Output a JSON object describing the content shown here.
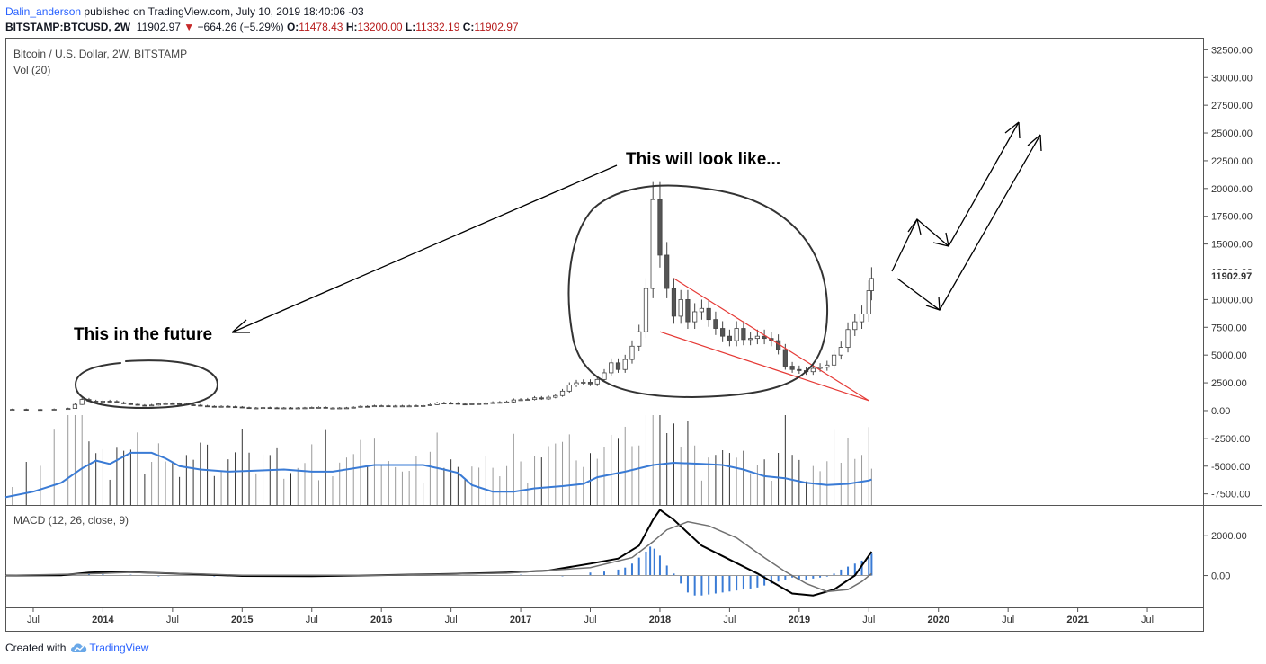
{
  "header": {
    "user": "Dalin_anderson",
    "published": " published on TradingView.com, July 10, 2019 18:40:06 -03"
  },
  "ticker": {
    "symbol": "BITSTAMP:BTCUSD, 2W",
    "last": "11902.97",
    "change": "−664.26 (−5.29%)",
    "o_label": "O:",
    "o": "11478.43",
    "h_label": "H:",
    "h": "13200.00",
    "l_label": "L:",
    "l": "11332.19",
    "c_label": "C:",
    "c": "11902.97"
  },
  "legend": {
    "main": "Bitcoin / U.S. Dollar, 2W, BITSTAMP",
    "vol": "Vol (20)",
    "macd": "MACD (12, 26, close, 9)"
  },
  "annotations": {
    "future": "This in the future",
    "lookslike": "This will look like..."
  },
  "footer": {
    "created": "Created with",
    "brand": "TradingView"
  },
  "colors": {
    "up": "#ffffff",
    "down": "#555555",
    "vol_ma": "#3a7bd5",
    "macd": "#000000",
    "signal": "#707070",
    "hist": "#3a7bd5",
    "wedge": "#e53935"
  },
  "chart_data": [
    {
      "type": "candlestick",
      "title": "Bitcoin / U.S. Dollar, 2W, BITSTAMP",
      "y_ticks": [
        32500,
        30000,
        27500,
        25000,
        22500,
        20000,
        17500,
        15000,
        12500,
        10000,
        7500,
        5000,
        2500,
        0,
        -2500,
        -5000,
        -7500
      ],
      "y_tick_labels": [
        "32500.00",
        "30000.00",
        "27500.00",
        "25000.00",
        "22500.00",
        "20000.00",
        "17500.00",
        "15000.00",
        "12500.00",
        "10000.00",
        "7500.00",
        "5000.00",
        "2500.00",
        "0.00",
        "-2500.00",
        "-5000.00",
        "-7500.00"
      ],
      "ylim": [
        -8500,
        33500
      ],
      "last_price_label": "11902.97",
      "x_range": [
        2013.3,
        2021.9
      ],
      "x_ticks": [
        {
          "label": "Jul",
          "t": 2013.5,
          "major": false
        },
        {
          "label": "2014",
          "t": 2014.0,
          "major": true
        },
        {
          "label": "Jul",
          "t": 2014.5,
          "major": false
        },
        {
          "label": "2015",
          "t": 2015.0,
          "major": true
        },
        {
          "label": "Jul",
          "t": 2015.5,
          "major": false
        },
        {
          "label": "2016",
          "t": 2016.0,
          "major": true
        },
        {
          "label": "Jul",
          "t": 2016.5,
          "major": false
        },
        {
          "label": "2017",
          "t": 2017.0,
          "major": true
        },
        {
          "label": "Jul",
          "t": 2017.5,
          "major": false
        },
        {
          "label": "2018",
          "t": 2018.0,
          "major": true
        },
        {
          "label": "Jul",
          "t": 2018.5,
          "major": false
        },
        {
          "label": "2019",
          "t": 2019.0,
          "major": true
        },
        {
          "label": "Jul",
          "t": 2019.5,
          "major": false
        },
        {
          "label": "2020",
          "t": 2020.0,
          "major": true
        },
        {
          "label": "Jul",
          "t": 2020.5,
          "major": false
        },
        {
          "label": "2021",
          "t": 2021.0,
          "major": true
        },
        {
          "label": "Jul",
          "t": 2021.5,
          "major": false
        }
      ],
      "closes": [
        [
          2013.35,
          110
        ],
        [
          2013.45,
          100
        ],
        [
          2013.55,
          95
        ],
        [
          2013.65,
          120
        ],
        [
          2013.75,
          190
        ],
        [
          2013.8,
          550
        ],
        [
          2013.85,
          1000
        ],
        [
          2013.9,
          850
        ],
        [
          2013.95,
          780
        ],
        [
          2014.0,
          850
        ],
        [
          2014.05,
          820
        ],
        [
          2014.1,
          700
        ],
        [
          2014.15,
          620
        ],
        [
          2014.2,
          560
        ],
        [
          2014.25,
          480
        ],
        [
          2014.3,
          450
        ],
        [
          2014.35,
          500
        ],
        [
          2014.4,
          600
        ],
        [
          2014.45,
          630
        ],
        [
          2014.5,
          620
        ],
        [
          2014.55,
          590
        ],
        [
          2014.6,
          520
        ],
        [
          2014.65,
          480
        ],
        [
          2014.7,
          420
        ],
        [
          2014.75,
          380
        ],
        [
          2014.8,
          360
        ],
        [
          2014.85,
          380
        ],
        [
          2014.9,
          350
        ],
        [
          2014.95,
          320
        ],
        [
          2015.0,
          270
        ],
        [
          2015.05,
          230
        ],
        [
          2015.1,
          240
        ],
        [
          2015.15,
          270
        ],
        [
          2015.2,
          250
        ],
        [
          2015.25,
          230
        ],
        [
          2015.3,
          240
        ],
        [
          2015.35,
          230
        ],
        [
          2015.4,
          240
        ],
        [
          2015.45,
          250
        ],
        [
          2015.5,
          280
        ],
        [
          2015.55,
          290
        ],
        [
          2015.6,
          230
        ],
        [
          2015.65,
          230
        ],
        [
          2015.7,
          240
        ],
        [
          2015.75,
          250
        ],
        [
          2015.8,
          300
        ],
        [
          2015.85,
          380
        ],
        [
          2015.9,
          360
        ],
        [
          2015.95,
          430
        ],
        [
          2016.0,
          430
        ],
        [
          2016.05,
          380
        ],
        [
          2016.1,
          410
        ],
        [
          2016.15,
          420
        ],
        [
          2016.2,
          420
        ],
        [
          2016.25,
          440
        ],
        [
          2016.3,
          450
        ],
        [
          2016.35,
          530
        ],
        [
          2016.4,
          680
        ],
        [
          2016.45,
          670
        ],
        [
          2016.5,
          650
        ],
        [
          2016.55,
          590
        ],
        [
          2016.6,
          580
        ],
        [
          2016.65,
          610
        ],
        [
          2016.7,
          620
        ],
        [
          2016.75,
          650
        ],
        [
          2016.8,
          720
        ],
        [
          2016.85,
          740
        ],
        [
          2016.9,
          780
        ],
        [
          2016.95,
          960
        ],
        [
          2017.0,
          980
        ],
        [
          2017.05,
          1000
        ],
        [
          2017.1,
          1150
        ],
        [
          2017.15,
          1050
        ],
        [
          2017.2,
          1200
        ],
        [
          2017.25,
          1350
        ],
        [
          2017.3,
          1750
        ],
        [
          2017.35,
          2300
        ],
        [
          2017.4,
          2500
        ],
        [
          2017.45,
          2550
        ],
        [
          2017.5,
          2400
        ],
        [
          2017.55,
          2800
        ],
        [
          2017.6,
          3400
        ],
        [
          2017.65,
          4300
        ],
        [
          2017.7,
          3700
        ],
        [
          2017.75,
          4600
        ],
        [
          2017.8,
          5800
        ],
        [
          2017.85,
          7100
        ],
        [
          2017.9,
          11000
        ],
        [
          2017.95,
          19000
        ],
        [
          2018.0,
          14000
        ],
        [
          2018.05,
          11000
        ],
        [
          2018.1,
          8500
        ],
        [
          2018.15,
          10000
        ],
        [
          2018.2,
          8000
        ],
        [
          2018.25,
          8900
        ],
        [
          2018.3,
          9200
        ],
        [
          2018.35,
          8200
        ],
        [
          2018.4,
          7400
        ],
        [
          2018.45,
          6700
        ],
        [
          2018.5,
          6300
        ],
        [
          2018.55,
          7400
        ],
        [
          2018.6,
          6400
        ],
        [
          2018.65,
          6500
        ],
        [
          2018.7,
          6700
        ],
        [
          2018.75,
          6500
        ],
        [
          2018.8,
          6300
        ],
        [
          2018.85,
          5500
        ],
        [
          2018.9,
          4000
        ],
        [
          2018.95,
          3700
        ],
        [
          2019.0,
          3600
        ],
        [
          2019.05,
          3500
        ],
        [
          2019.1,
          3800
        ],
        [
          2019.15,
          3900
        ],
        [
          2019.2,
          4100
        ],
        [
          2019.25,
          5000
        ],
        [
          2019.3,
          5700
        ],
        [
          2019.35,
          7300
        ],
        [
          2019.4,
          8000
        ],
        [
          2019.45,
          8700
        ],
        [
          2019.5,
          10800
        ],
        [
          2019.52,
          11902.97
        ]
      ],
      "volume_ma": [
        [
          2013.3,
          -7800
        ],
        [
          2013.5,
          -7300
        ],
        [
          2013.7,
          -6500
        ],
        [
          2013.85,
          -5200
        ],
        [
          2013.95,
          -4500
        ],
        [
          2014.05,
          -4800
        ],
        [
          2014.2,
          -3800
        ],
        [
          2014.35,
          -3800
        ],
        [
          2014.45,
          -4300
        ],
        [
          2014.55,
          -5000
        ],
        [
          2014.7,
          -5300
        ],
        [
          2014.9,
          -5500
        ],
        [
          2015.1,
          -5400
        ],
        [
          2015.3,
          -5300
        ],
        [
          2015.5,
          -5500
        ],
        [
          2015.65,
          -5500
        ],
        [
          2015.8,
          -5200
        ],
        [
          2015.95,
          -4900
        ],
        [
          2016.1,
          -4900
        ],
        [
          2016.3,
          -4900
        ],
        [
          2016.45,
          -5300
        ],
        [
          2016.55,
          -5600
        ],
        [
          2016.65,
          -6700
        ],
        [
          2016.8,
          -7300
        ],
        [
          2016.95,
          -7300
        ],
        [
          2017.1,
          -7000
        ],
        [
          2017.3,
          -6800
        ],
        [
          2017.45,
          -6600
        ],
        [
          2017.55,
          -6000
        ],
        [
          2017.75,
          -5500
        ],
        [
          2017.95,
          -4900
        ],
        [
          2018.1,
          -4700
        ],
        [
          2018.3,
          -4800
        ],
        [
          2018.45,
          -4900
        ],
        [
          2018.6,
          -5300
        ],
        [
          2018.75,
          -5900
        ],
        [
          2018.9,
          -6100
        ],
        [
          2019.05,
          -6500
        ],
        [
          2019.2,
          -6700
        ],
        [
          2019.35,
          -6600
        ],
        [
          2019.5,
          -6300
        ],
        [
          2019.52,
          -6200
        ]
      ],
      "wedge": {
        "upper": [
          [
            2018.1,
            11900
          ],
          [
            2019.5,
            900
          ]
        ],
        "lower": [
          [
            2018.0,
            7100
          ],
          [
            2019.5,
            900
          ]
        ]
      }
    },
    {
      "type": "macd",
      "title": "MACD (12, 26, close, 9)",
      "y_ticks": [
        2000,
        0
      ],
      "y_tick_labels": [
        "2000.00",
        "0.00"
      ],
      "ylim": [
        -1600,
        3500
      ],
      "macd": [
        [
          2013.3,
          0
        ],
        [
          2013.7,
          10
        ],
        [
          2013.9,
          150
        ],
        [
          2014.1,
          200
        ],
        [
          2014.4,
          130
        ],
        [
          2014.7,
          60
        ],
        [
          2015.0,
          -20
        ],
        [
          2015.5,
          -30
        ],
        [
          2016.0,
          20
        ],
        [
          2016.5,
          80
        ],
        [
          2016.9,
          150
        ],
        [
          2017.2,
          250
        ],
        [
          2017.5,
          600
        ],
        [
          2017.7,
          850
        ],
        [
          2017.85,
          1500
        ],
        [
          2017.95,
          2800
        ],
        [
          2018.0,
          3300
        ],
        [
          2018.1,
          2800
        ],
        [
          2018.3,
          1500
        ],
        [
          2018.5,
          800
        ],
        [
          2018.7,
          100
        ],
        [
          2018.85,
          -500
        ],
        [
          2018.95,
          -900
        ],
        [
          2019.1,
          -1000
        ],
        [
          2019.25,
          -700
        ],
        [
          2019.4,
          0
        ],
        [
          2019.52,
          1200
        ]
      ],
      "signal": [
        [
          2013.3,
          0
        ],
        [
          2013.9,
          90
        ],
        [
          2014.2,
          160
        ],
        [
          2014.7,
          80
        ],
        [
          2015.0,
          10
        ],
        [
          2016.0,
          10
        ],
        [
          2016.9,
          120
        ],
        [
          2017.5,
          400
        ],
        [
          2017.8,
          900
        ],
        [
          2017.95,
          1700
        ],
        [
          2018.05,
          2300
        ],
        [
          2018.2,
          2700
        ],
        [
          2018.35,
          2500
        ],
        [
          2018.55,
          1900
        ],
        [
          2018.75,
          900
        ],
        [
          2018.9,
          200
        ],
        [
          2019.05,
          -400
        ],
        [
          2019.2,
          -800
        ],
        [
          2019.35,
          -700
        ],
        [
          2019.45,
          -300
        ],
        [
          2019.52,
          100
        ]
      ],
      "histogram": [
        [
          2013.9,
          60
        ],
        [
          2014.0,
          60
        ],
        [
          2014.2,
          40
        ],
        [
          2014.4,
          -40
        ],
        [
          2014.6,
          -20
        ],
        [
          2014.8,
          -40
        ],
        [
          2015.2,
          -20
        ],
        [
          2016.4,
          20
        ],
        [
          2017.0,
          40
        ],
        [
          2017.3,
          -40
        ],
        [
          2017.5,
          150
        ],
        [
          2017.6,
          200
        ],
        [
          2017.7,
          300
        ],
        [
          2017.75,
          400
        ],
        [
          2017.8,
          600
        ],
        [
          2017.85,
          900
        ],
        [
          2017.9,
          1200
        ],
        [
          2017.93,
          1450
        ],
        [
          2017.96,
          1350
        ],
        [
          2018.0,
          1000
        ],
        [
          2018.05,
          500
        ],
        [
          2018.1,
          100
        ],
        [
          2018.15,
          -400
        ],
        [
          2018.2,
          -850
        ],
        [
          2018.25,
          -1000
        ],
        [
          2018.3,
          -1000
        ],
        [
          2018.35,
          -950
        ],
        [
          2018.4,
          -900
        ],
        [
          2018.45,
          -850
        ],
        [
          2018.5,
          -800
        ],
        [
          2018.55,
          -750
        ],
        [
          2018.6,
          -700
        ],
        [
          2018.65,
          -650
        ],
        [
          2018.7,
          -600
        ],
        [
          2018.75,
          -500
        ],
        [
          2018.8,
          -400
        ],
        [
          2018.85,
          -300
        ],
        [
          2018.9,
          -200
        ],
        [
          2018.95,
          -100
        ],
        [
          2019.0,
          -250
        ],
        [
          2019.05,
          -200
        ],
        [
          2019.1,
          -150
        ],
        [
          2019.15,
          -100
        ],
        [
          2019.2,
          -50
        ],
        [
          2019.25,
          100
        ],
        [
          2019.3,
          300
        ],
        [
          2019.35,
          450
        ],
        [
          2019.4,
          600
        ],
        [
          2019.45,
          750
        ],
        [
          2019.5,
          900
        ],
        [
          2019.52,
          1100
        ]
      ]
    }
  ]
}
